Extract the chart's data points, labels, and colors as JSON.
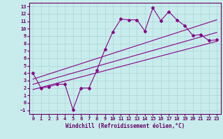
{
  "xlabel": "Windchill (Refroidissement éolien,°C)",
  "background_color": "#c8ecec",
  "grid_color": "#b0d8d8",
  "line_color": "#880088",
  "xlim": [
    -0.5,
    23.5
  ],
  "ylim": [
    -1.5,
    13.5
  ],
  "xticks": [
    0,
    1,
    2,
    3,
    4,
    5,
    6,
    7,
    8,
    9,
    10,
    11,
    12,
    13,
    14,
    15,
    16,
    17,
    18,
    19,
    20,
    21,
    22,
    23
  ],
  "yticks": [
    -1,
    0,
    1,
    2,
    3,
    4,
    5,
    6,
    7,
    8,
    9,
    10,
    11,
    12,
    13
  ],
  "line1_x": [
    0,
    1,
    2,
    3,
    4,
    5,
    6,
    7,
    8,
    9,
    10,
    11,
    12,
    13,
    14,
    15,
    16,
    17,
    18,
    19,
    20,
    21,
    22,
    23
  ],
  "line1_y": [
    4.0,
    2.0,
    2.2,
    2.5,
    2.5,
    -0.9,
    2.0,
    2.0,
    4.4,
    7.2,
    9.6,
    11.3,
    11.2,
    11.2,
    9.7,
    12.8,
    11.1,
    12.3,
    11.2,
    10.4,
    9.1,
    9.2,
    8.4,
    8.5
  ],
  "line2_x": [
    0,
    23
  ],
  "line2_y": [
    3.2,
    11.2
  ],
  "line3_x": [
    0,
    23
  ],
  "line3_y": [
    2.5,
    9.5
  ],
  "line4_x": [
    0,
    23
  ],
  "line4_y": [
    1.8,
    8.3
  ]
}
